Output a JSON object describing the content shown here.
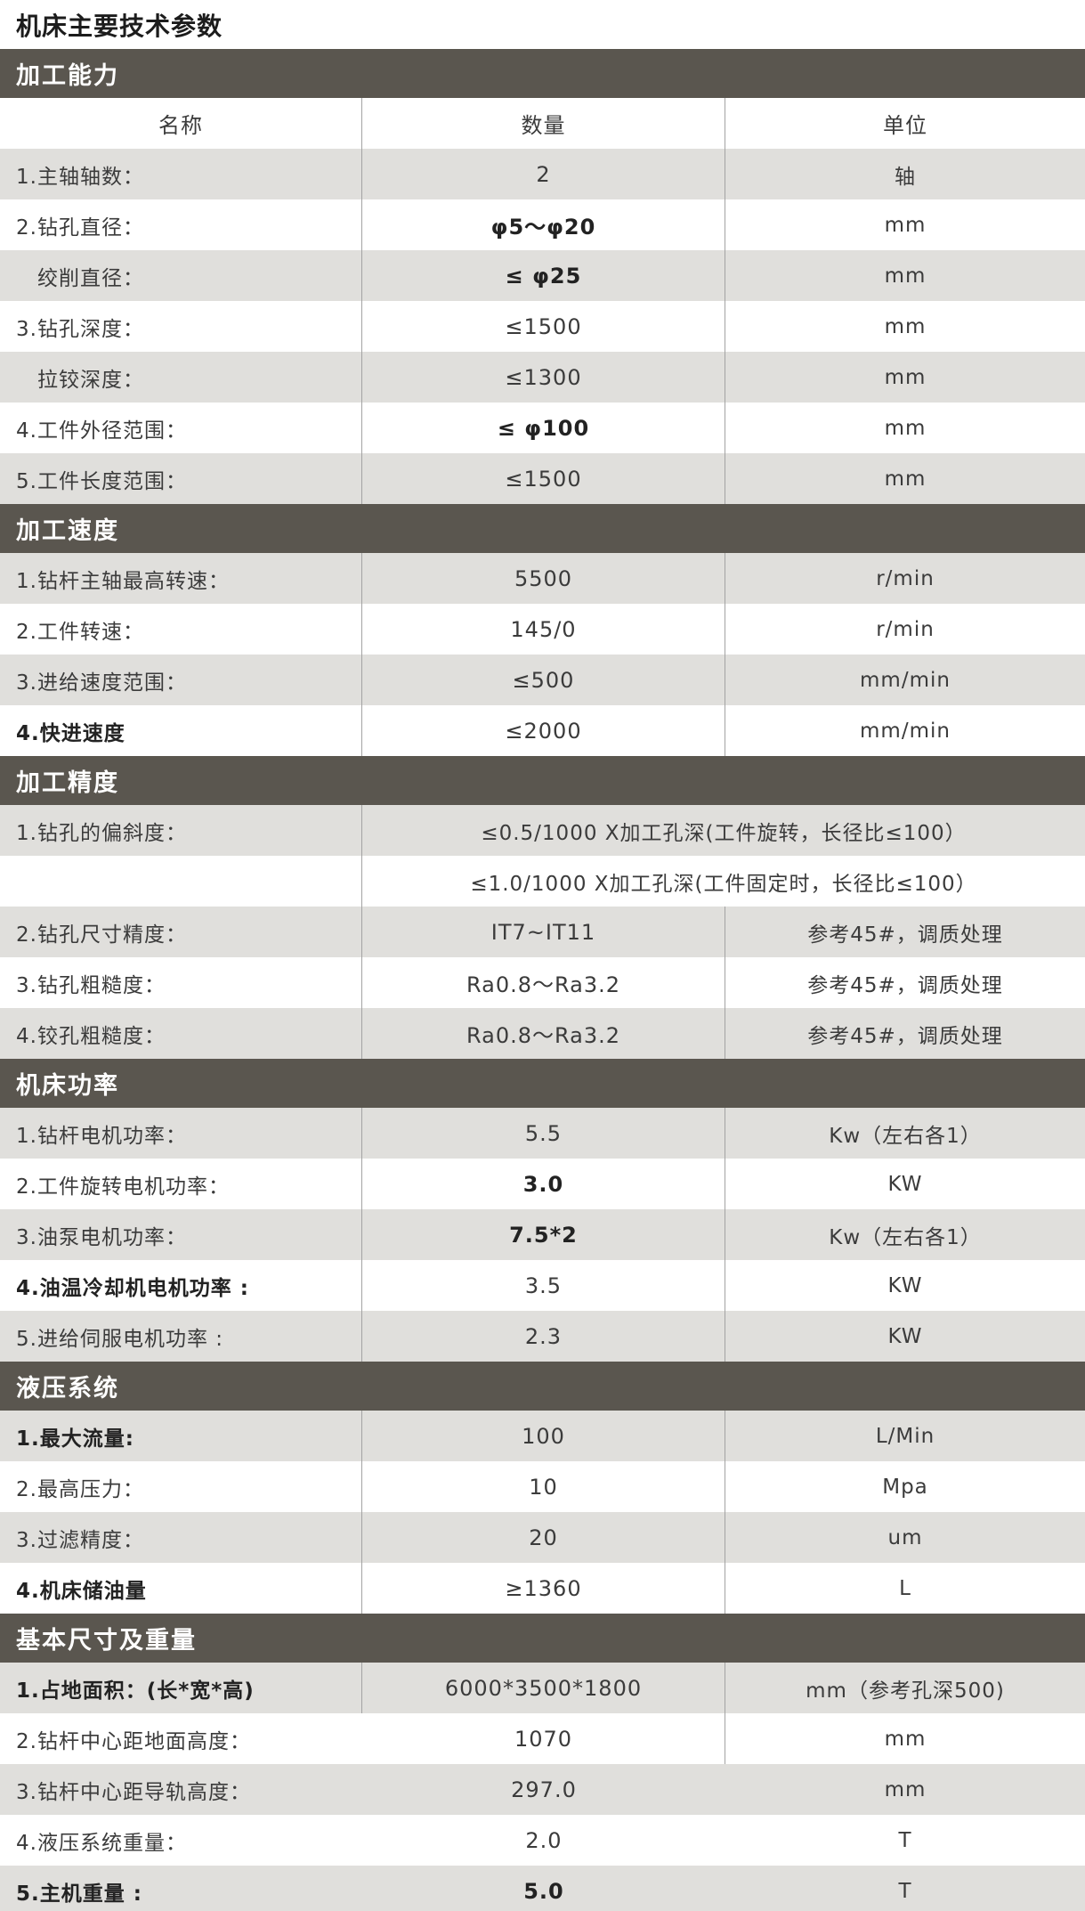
{
  "title": "机床主要技术参数",
  "table": {
    "columns": [
      "名称",
      "数量",
      "单位"
    ],
    "sections": [
      {
        "title": "加工能力",
        "show_column_header": true,
        "rows": [
          {
            "name": "1.主轴轴数：",
            "value": "2",
            "unit": "轴"
          },
          {
            "name": "2.钻孔直径：",
            "value": "φ5～φ20",
            "unit": "mm",
            "value_bold": true
          },
          {
            "name": "　绞削直径：",
            "value": "≤ φ25",
            "unit": "mm",
            "value_bold": true
          },
          {
            "name": "3.钻孔深度：",
            "value": "≤1500",
            "unit": "mm"
          },
          {
            "name": "　拉铰深度：",
            "value": "≤1300",
            "unit": "mm"
          },
          {
            "name": "4.工件外径范围：",
            "value": "≤ φ100",
            "unit": "mm",
            "value_bold": true
          },
          {
            "name": "5.工件长度范围：",
            "value": "≤1500",
            "unit": "mm"
          }
        ]
      },
      {
        "title": "加工速度",
        "rows": [
          {
            "name": "1.钻杆主轴最高转速：",
            "value": "5500",
            "unit": "r/min"
          },
          {
            "name": "2.工件转速：",
            "value": "145/0",
            "unit": "r/min"
          },
          {
            "name": "3.进给速度范围：",
            "value": "≤500",
            "unit": "mm/min"
          },
          {
            "name": "4.快进速度",
            "value": "≤2000",
            "unit": "mm/min",
            "name_bold": true
          }
        ]
      },
      {
        "title": "加工精度",
        "rows": [
          {
            "name": "1.钻孔的偏斜度：",
            "value": "≤0.5/1000  X加工孔深(工件旋转，长径比≤100）",
            "unit": "",
            "span": true
          },
          {
            "name": "",
            "value": "≤1.0/1000  X加工孔深(工件固定时，长径比≤100）",
            "unit": "",
            "span": true
          },
          {
            "name": "2.钻孔尺寸精度：",
            "value": "IT7~IT11",
            "unit": "参考45#，调质处理"
          },
          {
            "name": "3.钻孔粗糙度：",
            "value": "Ra0.8～Ra3.2",
            "unit": "参考45#，调质处理"
          },
          {
            "name": "4.铰孔粗糙度：",
            "value": "Ra0.8～Ra3.2",
            "unit": "参考45#，调质处理"
          }
        ]
      },
      {
        "title": "机床功率",
        "rows": [
          {
            "name": "1.钻杆电机功率：",
            "value": "5.5",
            "unit": "Kw（左右各1）"
          },
          {
            "name": "2.工件旋转电机功率：",
            "value": "3.0",
            "unit": "KW",
            "value_bold": true
          },
          {
            "name": "3.油泵电机功率：",
            "value": "7.5*2",
            "unit": "Kw（左右各1）",
            "value_bold": true
          },
          {
            "name": "4.油温冷却机电机功率 :",
            "value": "3.5",
            "unit": "KW",
            "name_bold": true
          },
          {
            "name": "5.进给伺服电机功率 :",
            "value": "2.3",
            "unit": "KW"
          }
        ]
      },
      {
        "title": "液压系统",
        "rows": [
          {
            "name": "1.最大流量:",
            "value": "100",
            "unit": "L/Min",
            "name_bold": true
          },
          {
            "name": "2.最高压力：",
            "value": "10",
            "unit": "Mpa"
          },
          {
            "name": "3.过滤精度：",
            "value": "20",
            "unit": "um"
          },
          {
            "name": "4.机床储油量",
            "value": "≥1360",
            "unit": "L",
            "name_bold": true
          }
        ]
      },
      {
        "title": "基本尺寸及重量",
        "rows": [
          {
            "name": "1.占地面积：(长*宽*高)",
            "value": "6000*3500*1800",
            "unit": "mm（参考孔深500)",
            "name_bold": true
          },
          {
            "name": "2.钻杆中心距地面高度：",
            "value": "1070",
            "unit": "mm",
            "dividers": "right"
          },
          {
            "name": "3.钻杆中心距导轨高度：",
            "value": "297.0",
            "unit": "mm",
            "dividers": "none"
          },
          {
            "name": "4.液压系统重量：",
            "value": "2.0",
            "unit": "T",
            "dividers": "none"
          },
          {
            "name": "5.主机重量 :",
            "value": "5.0",
            "unit": "T",
            "dividers": "none",
            "name_bold": true,
            "value_bold": true
          }
        ]
      }
    ]
  },
  "colors": {
    "section_bar": "#5a564f",
    "row_stripe": "#e0dfdc",
    "divider": "#a3a3a3"
  }
}
